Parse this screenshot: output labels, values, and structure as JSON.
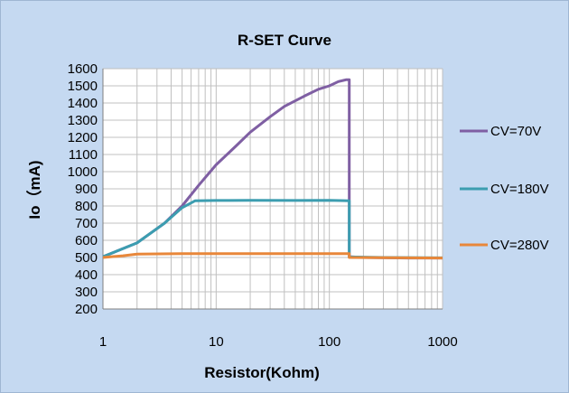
{
  "chart_data": {
    "type": "line",
    "title": "R-SET Curve",
    "xlabel": "Resistor(Kohm)",
    "ylabel": "Io（mA)",
    "x_scale": "log",
    "xlim": [
      1,
      1000
    ],
    "ylim": [
      200,
      1600
    ],
    "x_ticks": [
      "1",
      "10",
      "100",
      "1000"
    ],
    "y_ticks": [
      "200",
      "300",
      "400",
      "500",
      "600",
      "700",
      "800",
      "900",
      "1000",
      "1100",
      "1200",
      "1300",
      "1400",
      "1500",
      "1600"
    ],
    "grid": true,
    "legend_position": "right",
    "series": [
      {
        "name": "CV=70V",
        "color": "#7f5fa3",
        "points": [
          [
            1,
            505
          ],
          [
            2,
            585
          ],
          [
            3.5,
            700
          ],
          [
            5,
            800
          ],
          [
            7,
            920
          ],
          [
            10,
            1040
          ],
          [
            15,
            1150
          ],
          [
            20,
            1230
          ],
          [
            30,
            1320
          ],
          [
            40,
            1380
          ],
          [
            60,
            1440
          ],
          [
            80,
            1480
          ],
          [
            100,
            1500
          ],
          [
            120,
            1525
          ],
          [
            140,
            1535
          ],
          [
            150,
            1535
          ],
          [
            150,
            505
          ],
          [
            200,
            500
          ],
          [
            500,
            497
          ],
          [
            1000,
            497
          ]
        ]
      },
      {
        "name": "CV=180V",
        "color": "#3c9db0",
        "points": [
          [
            1,
            505
          ],
          [
            2,
            585
          ],
          [
            3.5,
            700
          ],
          [
            5,
            790
          ],
          [
            6.5,
            830
          ],
          [
            10,
            832
          ],
          [
            20,
            833
          ],
          [
            50,
            832
          ],
          [
            100,
            833
          ],
          [
            150,
            830
          ],
          [
            150,
            503
          ],
          [
            300,
            500
          ],
          [
            1000,
            498
          ]
        ]
      },
      {
        "name": "CV=280V",
        "color": "#e8873a",
        "points": [
          [
            1,
            500
          ],
          [
            1.5,
            510
          ],
          [
            2,
            520
          ],
          [
            5,
            522
          ],
          [
            10,
            522
          ],
          [
            50,
            522
          ],
          [
            100,
            522
          ],
          [
            150,
            522
          ],
          [
            150,
            500
          ],
          [
            1000,
            497
          ]
        ]
      }
    ]
  }
}
